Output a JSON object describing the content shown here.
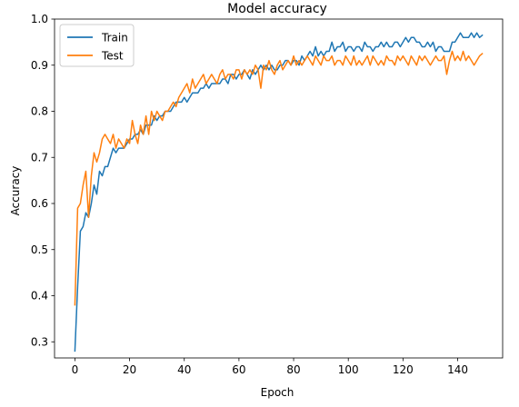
{
  "chart_data": {
    "type": "line",
    "title": "Model accuracy",
    "xlabel": "Epoch",
    "ylabel": "Accuracy",
    "xlim": [
      -7.45,
      156.45
    ],
    "ylim": [
      0.265,
      1.0
    ],
    "x_ticks": [
      0,
      20,
      40,
      60,
      80,
      100,
      120,
      140
    ],
    "y_ticks": [
      0.3,
      0.4,
      0.5,
      0.6,
      0.7,
      0.8,
      0.9,
      1.0
    ],
    "x_tick_labels": [
      "0",
      "20",
      "40",
      "60",
      "80",
      "100",
      "120",
      "140"
    ],
    "y_tick_labels": [
      "0.3",
      "0.4",
      "0.5",
      "0.6",
      "0.7",
      "0.8",
      "0.9",
      "1.0"
    ],
    "legend_position": "top-left",
    "grid": false,
    "series": [
      {
        "name": "Train",
        "color": "#1f77b4",
        "values": [
          0.28,
          0.42,
          0.54,
          0.55,
          0.58,
          0.57,
          0.6,
          0.64,
          0.62,
          0.67,
          0.66,
          0.68,
          0.68,
          0.7,
          0.72,
          0.71,
          0.72,
          0.72,
          0.72,
          0.73,
          0.74,
          0.74,
          0.75,
          0.75,
          0.76,
          0.75,
          0.77,
          0.77,
          0.77,
          0.79,
          0.78,
          0.79,
          0.79,
          0.8,
          0.8,
          0.8,
          0.81,
          0.82,
          0.82,
          0.82,
          0.83,
          0.82,
          0.83,
          0.84,
          0.84,
          0.84,
          0.85,
          0.85,
          0.86,
          0.85,
          0.86,
          0.86,
          0.86,
          0.86,
          0.87,
          0.87,
          0.86,
          0.88,
          0.88,
          0.87,
          0.88,
          0.88,
          0.89,
          0.88,
          0.87,
          0.89,
          0.88,
          0.89,
          0.9,
          0.89,
          0.9,
          0.89,
          0.9,
          0.89,
          0.89,
          0.9,
          0.9,
          0.91,
          0.91,
          0.9,
          0.91,
          0.91,
          0.9,
          0.92,
          0.91,
          0.92,
          0.93,
          0.92,
          0.94,
          0.92,
          0.93,
          0.92,
          0.93,
          0.93,
          0.95,
          0.93,
          0.94,
          0.94,
          0.95,
          0.93,
          0.94,
          0.94,
          0.93,
          0.94,
          0.94,
          0.93,
          0.95,
          0.94,
          0.94,
          0.93,
          0.94,
          0.94,
          0.95,
          0.94,
          0.95,
          0.94,
          0.94,
          0.95,
          0.95,
          0.94,
          0.95,
          0.96,
          0.95,
          0.96,
          0.96,
          0.95,
          0.95,
          0.94,
          0.94,
          0.95,
          0.94,
          0.95,
          0.93,
          0.94,
          0.94,
          0.93,
          0.93,
          0.93,
          0.95,
          0.95,
          0.96,
          0.97,
          0.96,
          0.96,
          0.96,
          0.97,
          0.96,
          0.97,
          0.96,
          0.965
        ]
      },
      {
        "name": "Test",
        "color": "#ff7f0e",
        "values": [
          0.38,
          0.59,
          0.6,
          0.64,
          0.67,
          0.57,
          0.66,
          0.71,
          0.69,
          0.71,
          0.74,
          0.75,
          0.74,
          0.73,
          0.75,
          0.72,
          0.74,
          0.73,
          0.72,
          0.74,
          0.73,
          0.78,
          0.75,
          0.73,
          0.77,
          0.75,
          0.79,
          0.75,
          0.8,
          0.78,
          0.8,
          0.79,
          0.78,
          0.8,
          0.8,
          0.81,
          0.82,
          0.81,
          0.83,
          0.84,
          0.85,
          0.86,
          0.84,
          0.87,
          0.85,
          0.86,
          0.87,
          0.88,
          0.86,
          0.87,
          0.88,
          0.87,
          0.86,
          0.88,
          0.89,
          0.87,
          0.88,
          0.88,
          0.87,
          0.89,
          0.89,
          0.87,
          0.89,
          0.88,
          0.89,
          0.88,
          0.9,
          0.89,
          0.85,
          0.9,
          0.89,
          0.91,
          0.89,
          0.88,
          0.9,
          0.91,
          0.89,
          0.9,
          0.91,
          0.9,
          0.92,
          0.9,
          0.91,
          0.9,
          0.91,
          0.92,
          0.91,
          0.9,
          0.92,
          0.91,
          0.9,
          0.92,
          0.91,
          0.91,
          0.92,
          0.9,
          0.91,
          0.91,
          0.9,
          0.92,
          0.91,
          0.9,
          0.92,
          0.9,
          0.91,
          0.9,
          0.91,
          0.92,
          0.9,
          0.92,
          0.91,
          0.9,
          0.91,
          0.9,
          0.92,
          0.91,
          0.91,
          0.9,
          0.92,
          0.91,
          0.92,
          0.91,
          0.9,
          0.92,
          0.91,
          0.9,
          0.92,
          0.91,
          0.92,
          0.91,
          0.9,
          0.91,
          0.92,
          0.91,
          0.91,
          0.92,
          0.88,
          0.91,
          0.93,
          0.91,
          0.92,
          0.91,
          0.93,
          0.91,
          0.92,
          0.91,
          0.9,
          0.91,
          0.92,
          0.925
        ]
      }
    ]
  }
}
